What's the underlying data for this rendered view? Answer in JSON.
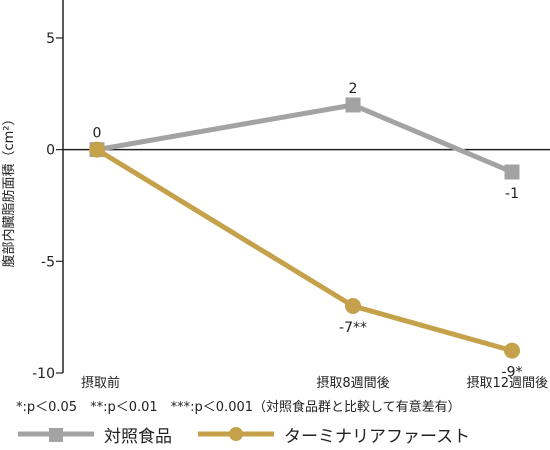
{
  "chart_data": {
    "type": "line",
    "title": "",
    "xlabel": "",
    "ylabel": "腹部内臓脂肪面積（cm²）",
    "categories": [
      "摂取前",
      "摂取8週間後",
      "摂取12週間後"
    ],
    "ylim": [
      -10,
      6.7
    ],
    "yticks": [
      5,
      0,
      -5,
      -10
    ],
    "ytick_labels": [
      "5",
      "0",
      "-5",
      "-10"
    ],
    "grid": false,
    "legend_position": "bottom",
    "series": [
      {
        "name": "対照食品",
        "values": [
          0,
          2,
          -1
        ],
        "labels": [
          "0",
          "2",
          "-1"
        ],
        "color": "#a3a3a3",
        "marker": "square"
      },
      {
        "name": "ターミナリアファースト",
        "values": [
          0,
          -7,
          -9
        ],
        "labels": [
          "",
          "-7**",
          "-9*"
        ],
        "color": "#c4a14a",
        "marker": "circle"
      }
    ],
    "footnote": "*:p＜0.05　**:p＜0.01　***:p＜0.001（対照食品群と比較して有意差有）"
  }
}
